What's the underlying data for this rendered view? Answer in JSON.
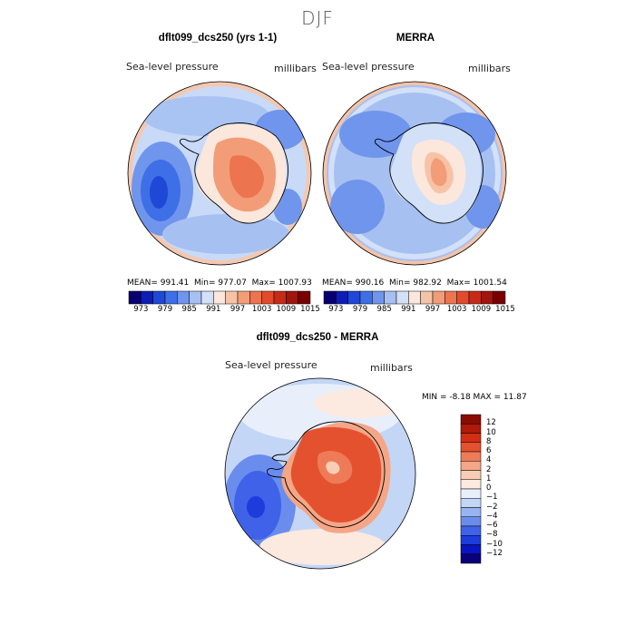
{
  "page": {
    "season_title": "DJF"
  },
  "panels": [
    {
      "title": "dflt099_dcs250 (yrs 1-1)",
      "variable": "Sea-level pressure",
      "units": "millibars",
      "stats": {
        "mean_label": "MEAN=",
        "mean": "991.41",
        "min_label": "Min=",
        "min": "977.07",
        "max_label": "Max=",
        "max": "1007.93"
      }
    },
    {
      "title": "MERRA",
      "variable": "Sea-level pressure",
      "units": "millibars",
      "stats": {
        "mean_label": "MEAN=",
        "mean": "990.16",
        "min_label": "Min=",
        "min": "982.92",
        "max_label": "Max=",
        "max": "1001.54"
      }
    },
    {
      "title": "dflt099_dcs250 - MERRA",
      "variable": "Sea-level pressure",
      "units": "millibars",
      "stats_line": "MIN =   -8.18  MAX =   11.87"
    }
  ],
  "colors": {
    "abs_scale": [
      "#08006e",
      "#0d1db5",
      "#1f48d6",
      "#3e6fe6",
      "#7095ec",
      "#a6c0f2",
      "#d2e1f8",
      "#fbe7dc",
      "#f7c3a7",
      "#f29d78",
      "#ec744f",
      "#e24a2c",
      "#c72a17",
      "#a0150d",
      "#780000"
    ],
    "diff_scale": [
      "#0a0078",
      "#0b14c2",
      "#1d3cdb",
      "#3f62e8",
      "#6a8ced",
      "#98b4f1",
      "#c4d6f6",
      "#e8effb",
      "#fce9e0",
      "#f9cdb5",
      "#f4a686",
      "#ee7b58",
      "#e4512f",
      "#d22e15",
      "#b01a0a",
      "#8a0a04"
    ],
    "ocean_far": "#a9c4f3",
    "ocean_mid": "#c8daf8",
    "coast": "#000000",
    "globe_edge": "#000000"
  },
  "chart_data": [
    {
      "type": "heatmap",
      "name": "model_slp_map",
      "title": "dflt099_dcs250 (yrs 1-1)",
      "field": "Sea-level pressure",
      "units": "millibars",
      "projection": "south polar stereographic",
      "mean": 991.41,
      "min": 977.07,
      "max": 1007.93,
      "colorbar_levels": [
        973,
        976,
        979,
        982,
        985,
        988,
        991,
        994,
        997,
        1000,
        1003,
        1006,
        1009,
        1012,
        1015
      ],
      "colorbar_tick_labels": [
        "973",
        "979",
        "985",
        "991",
        "997",
        "1003",
        "1009",
        "1015"
      ]
    },
    {
      "type": "heatmap",
      "name": "merra_slp_map",
      "title": "MERRA",
      "field": "Sea-level pressure",
      "units": "millibars",
      "projection": "south polar stereographic",
      "mean": 990.16,
      "min": 982.92,
      "max": 1001.54,
      "colorbar_levels": [
        973,
        976,
        979,
        982,
        985,
        988,
        991,
        994,
        997,
        1000,
        1003,
        1006,
        1009,
        1012,
        1015
      ],
      "colorbar_tick_labels": [
        "973",
        "979",
        "985",
        "991",
        "997",
        "1003",
        "1009",
        "1015"
      ]
    },
    {
      "type": "heatmap",
      "name": "difference_slp_map",
      "title": "dflt099_dcs250 - MERRA",
      "field": "Sea-level pressure",
      "units": "millibars",
      "projection": "south polar stereographic",
      "min": -8.18,
      "max": 11.87,
      "colorbar_levels": [
        -12,
        -10,
        -8,
        -6,
        -4,
        -2,
        -1,
        0,
        1,
        2,
        4,
        6,
        8,
        10,
        12
      ],
      "colorbar_tick_labels": [
        "12",
        "10",
        "8",
        "6",
        "4",
        "2",
        "1",
        "0",
        "−1",
        "−2",
        "−4",
        "−6",
        "−8",
        "−10",
        "−12"
      ]
    }
  ]
}
